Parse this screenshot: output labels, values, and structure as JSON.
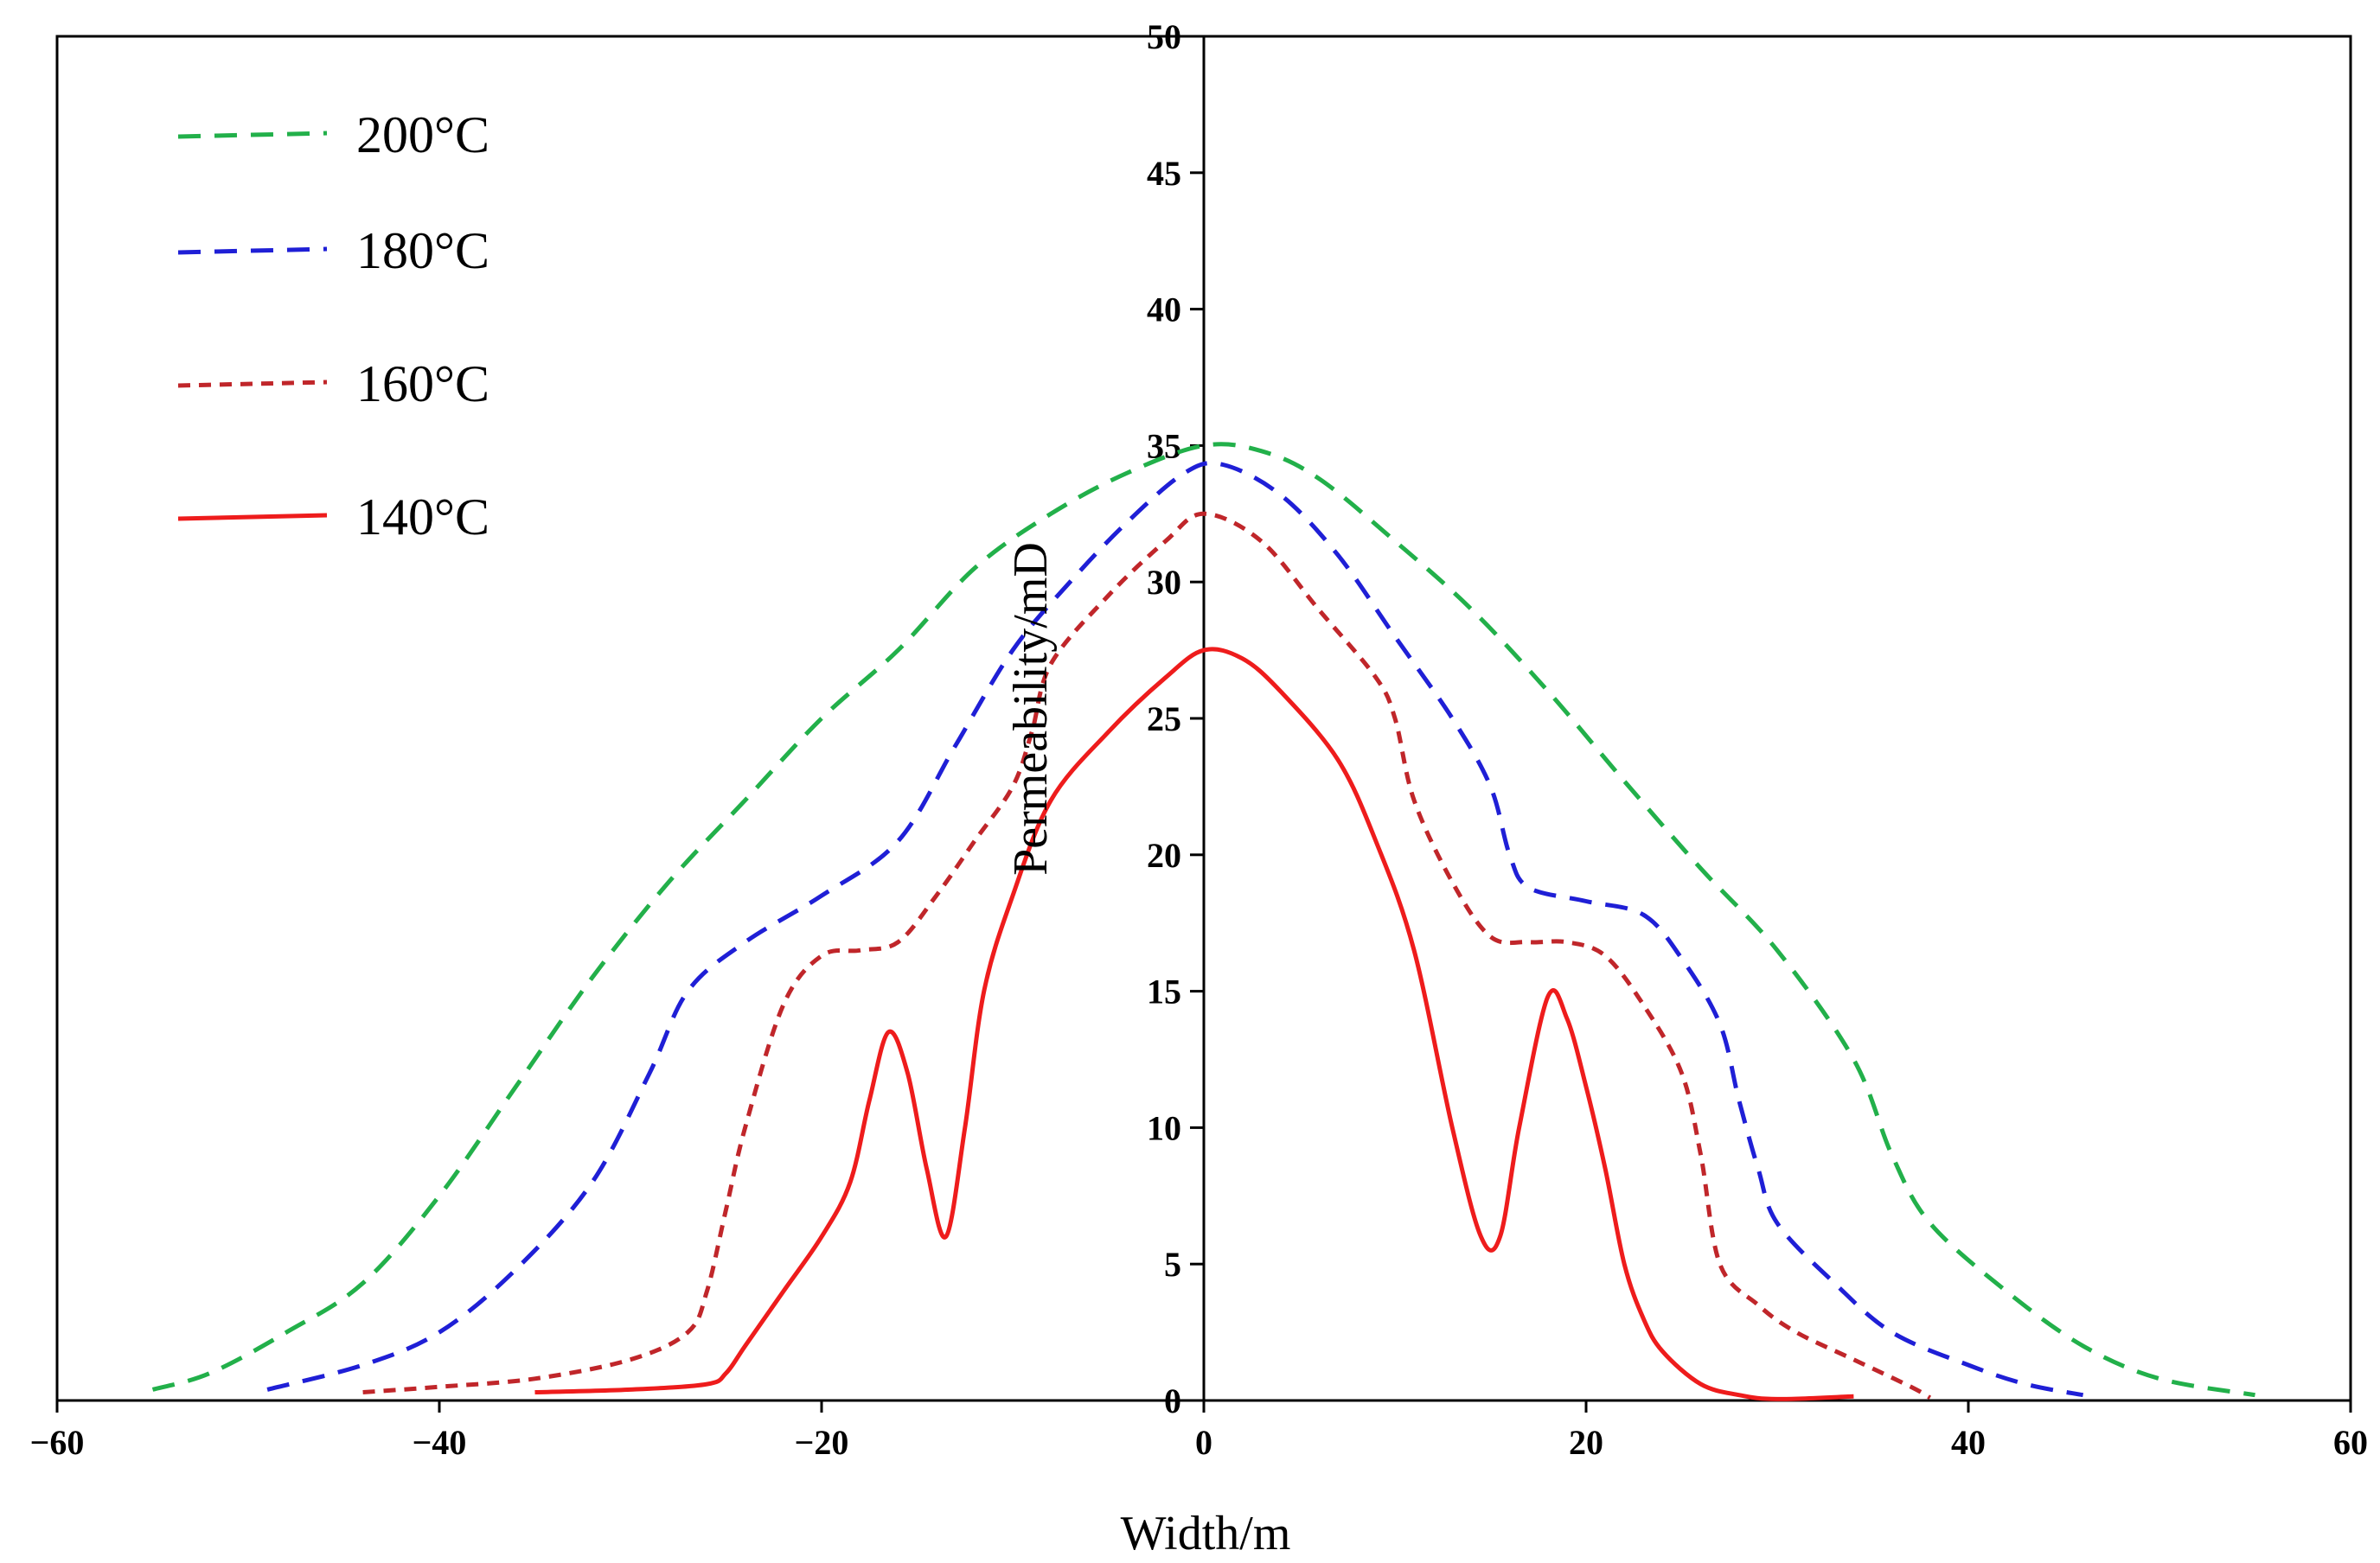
{
  "chart_data": {
    "type": "line",
    "title": "",
    "xlabel": "Width/m",
    "ylabel": "Permeability/mD",
    "xlim": [
      -60,
      60
    ],
    "ylim": [
      0,
      50
    ],
    "xticks": [
      "−60",
      "−40",
      "−20",
      "0",
      "20",
      "40",
      "60"
    ],
    "yticks": [
      "0",
      "5",
      "10",
      "15",
      "20",
      "25",
      "30",
      "35",
      "40",
      "45",
      "50"
    ],
    "legend_position": "top-left",
    "grid": false,
    "series": [
      {
        "name": "200°C",
        "color": "#22b04a",
        "dash": "dashed",
        "points": [
          [
            -55,
            0.4
          ],
          [
            -52,
            1
          ],
          [
            -48,
            2.5
          ],
          [
            -44,
            4.3
          ],
          [
            -40,
            7.5
          ],
          [
            -36,
            11.5
          ],
          [
            -32,
            15.5
          ],
          [
            -28,
            19
          ],
          [
            -24,
            22
          ],
          [
            -20,
            25
          ],
          [
            -16,
            27.5
          ],
          [
            -12,
            30.5
          ],
          [
            -8,
            32.5
          ],
          [
            -4,
            34
          ],
          [
            0,
            35
          ],
          [
            3,
            34.8
          ],
          [
            6,
            33.8
          ],
          [
            10,
            31.5
          ],
          [
            14,
            29
          ],
          [
            18,
            26
          ],
          [
            22,
            22.7
          ],
          [
            26,
            19.5
          ],
          [
            30,
            16.5
          ],
          [
            34,
            12.5
          ],
          [
            36,
            9
          ],
          [
            38,
            6.5
          ],
          [
            42,
            4
          ],
          [
            46,
            2
          ],
          [
            50,
            0.8
          ],
          [
            55,
            0.2
          ]
        ]
      },
      {
        "name": "180°C",
        "color": "#1f1fd6",
        "dash": "dashed",
        "points": [
          [
            -49,
            0.4
          ],
          [
            -44,
            1.3
          ],
          [
            -40,
            2.5
          ],
          [
            -36,
            4.8
          ],
          [
            -32,
            8
          ],
          [
            -29,
            12
          ],
          [
            -27,
            15
          ],
          [
            -24,
            16.8
          ],
          [
            -20,
            18.5
          ],
          [
            -16,
            20.5
          ],
          [
            -13,
            24
          ],
          [
            -10,
            27.5
          ],
          [
            -7,
            30
          ],
          [
            -4,
            32.2
          ],
          [
            -1,
            34
          ],
          [
            1,
            34.3
          ],
          [
            4,
            33.2
          ],
          [
            7,
            31
          ],
          [
            10,
            28
          ],
          [
            13,
            25
          ],
          [
            15,
            22.5
          ],
          [
            16,
            20
          ],
          [
            17,
            18.8
          ],
          [
            20,
            18.3
          ],
          [
            23,
            17.8
          ],
          [
            25,
            16.2
          ],
          [
            27,
            13.8
          ],
          [
            28,
            11
          ],
          [
            29,
            8.5
          ],
          [
            30,
            6.5
          ],
          [
            33,
            4.3
          ],
          [
            36,
            2.5
          ],
          [
            40,
            1.3
          ],
          [
            43,
            0.6
          ],
          [
            46,
            0.2
          ]
        ]
      },
      {
        "name": "160°C",
        "color": "#c0262a",
        "dash": "dotted",
        "points": [
          [
            -44,
            0.3
          ],
          [
            -40,
            0.5
          ],
          [
            -35,
            0.8
          ],
          [
            -30,
            1.5
          ],
          [
            -27,
            2.5
          ],
          [
            -26,
            4
          ],
          [
            -25,
            7
          ],
          [
            -24,
            10
          ],
          [
            -22,
            14.5
          ],
          [
            -20,
            16.3
          ],
          [
            -18,
            16.5
          ],
          [
            -16,
            16.8
          ],
          [
            -14,
            18.5
          ],
          [
            -12,
            20.5
          ],
          [
            -10,
            22.5
          ],
          [
            -9,
            24.5
          ],
          [
            -8,
            27
          ],
          [
            -5,
            29.5
          ],
          [
            -2,
            31.5
          ],
          [
            0,
            32.5
          ],
          [
            3,
            31.5
          ],
          [
            6,
            29
          ],
          [
            9,
            26.5
          ],
          [
            10,
            25
          ],
          [
            11,
            22
          ],
          [
            13,
            19
          ],
          [
            15,
            17
          ],
          [
            17,
            16.8
          ],
          [
            19,
            16.8
          ],
          [
            21,
            16.3
          ],
          [
            23,
            14.5
          ],
          [
            25,
            12
          ],
          [
            26,
            9
          ],
          [
            27,
            5
          ],
          [
            29,
            3.5
          ],
          [
            31,
            2.5
          ],
          [
            34,
            1.5
          ],
          [
            37,
            0.5
          ],
          [
            38,
            0.1
          ]
        ]
      },
      {
        "name": "140°C",
        "color": "#ee1c1c",
        "dash": "solid",
        "points": [
          [
            -35,
            0.3
          ],
          [
            -30,
            0.4
          ],
          [
            -26,
            0.6
          ],
          [
            -25,
            1
          ],
          [
            -24,
            2
          ],
          [
            -22,
            4
          ],
          [
            -20,
            6
          ],
          [
            -18.5,
            8
          ],
          [
            -17.5,
            11
          ],
          [
            -16.5,
            13.5
          ],
          [
            -15.5,
            12
          ],
          [
            -14.5,
            8.5
          ],
          [
            -13.5,
            6
          ],
          [
            -12.5,
            10
          ],
          [
            -11.5,
            15
          ],
          [
            -10,
            18.5
          ],
          [
            -8,
            22
          ],
          [
            -5,
            24.5
          ],
          [
            -2,
            26.5
          ],
          [
            0,
            27.5
          ],
          [
            2,
            27.2
          ],
          [
            4,
            26
          ],
          [
            7,
            23.5
          ],
          [
            9,
            20.5
          ],
          [
            11,
            16.5
          ],
          [
            13,
            10
          ],
          [
            14.5,
            6
          ],
          [
            15.5,
            6
          ],
          [
            16.5,
            10
          ],
          [
            18,
            14.8
          ],
          [
            19,
            14
          ],
          [
            20,
            11.5
          ],
          [
            21,
            8.5
          ],
          [
            22,
            5
          ],
          [
            23,
            3
          ],
          [
            24,
            1.8
          ],
          [
            26,
            0.6
          ],
          [
            28,
            0.2
          ],
          [
            30,
            0.05
          ],
          [
            34,
            0.15
          ]
        ]
      }
    ]
  }
}
